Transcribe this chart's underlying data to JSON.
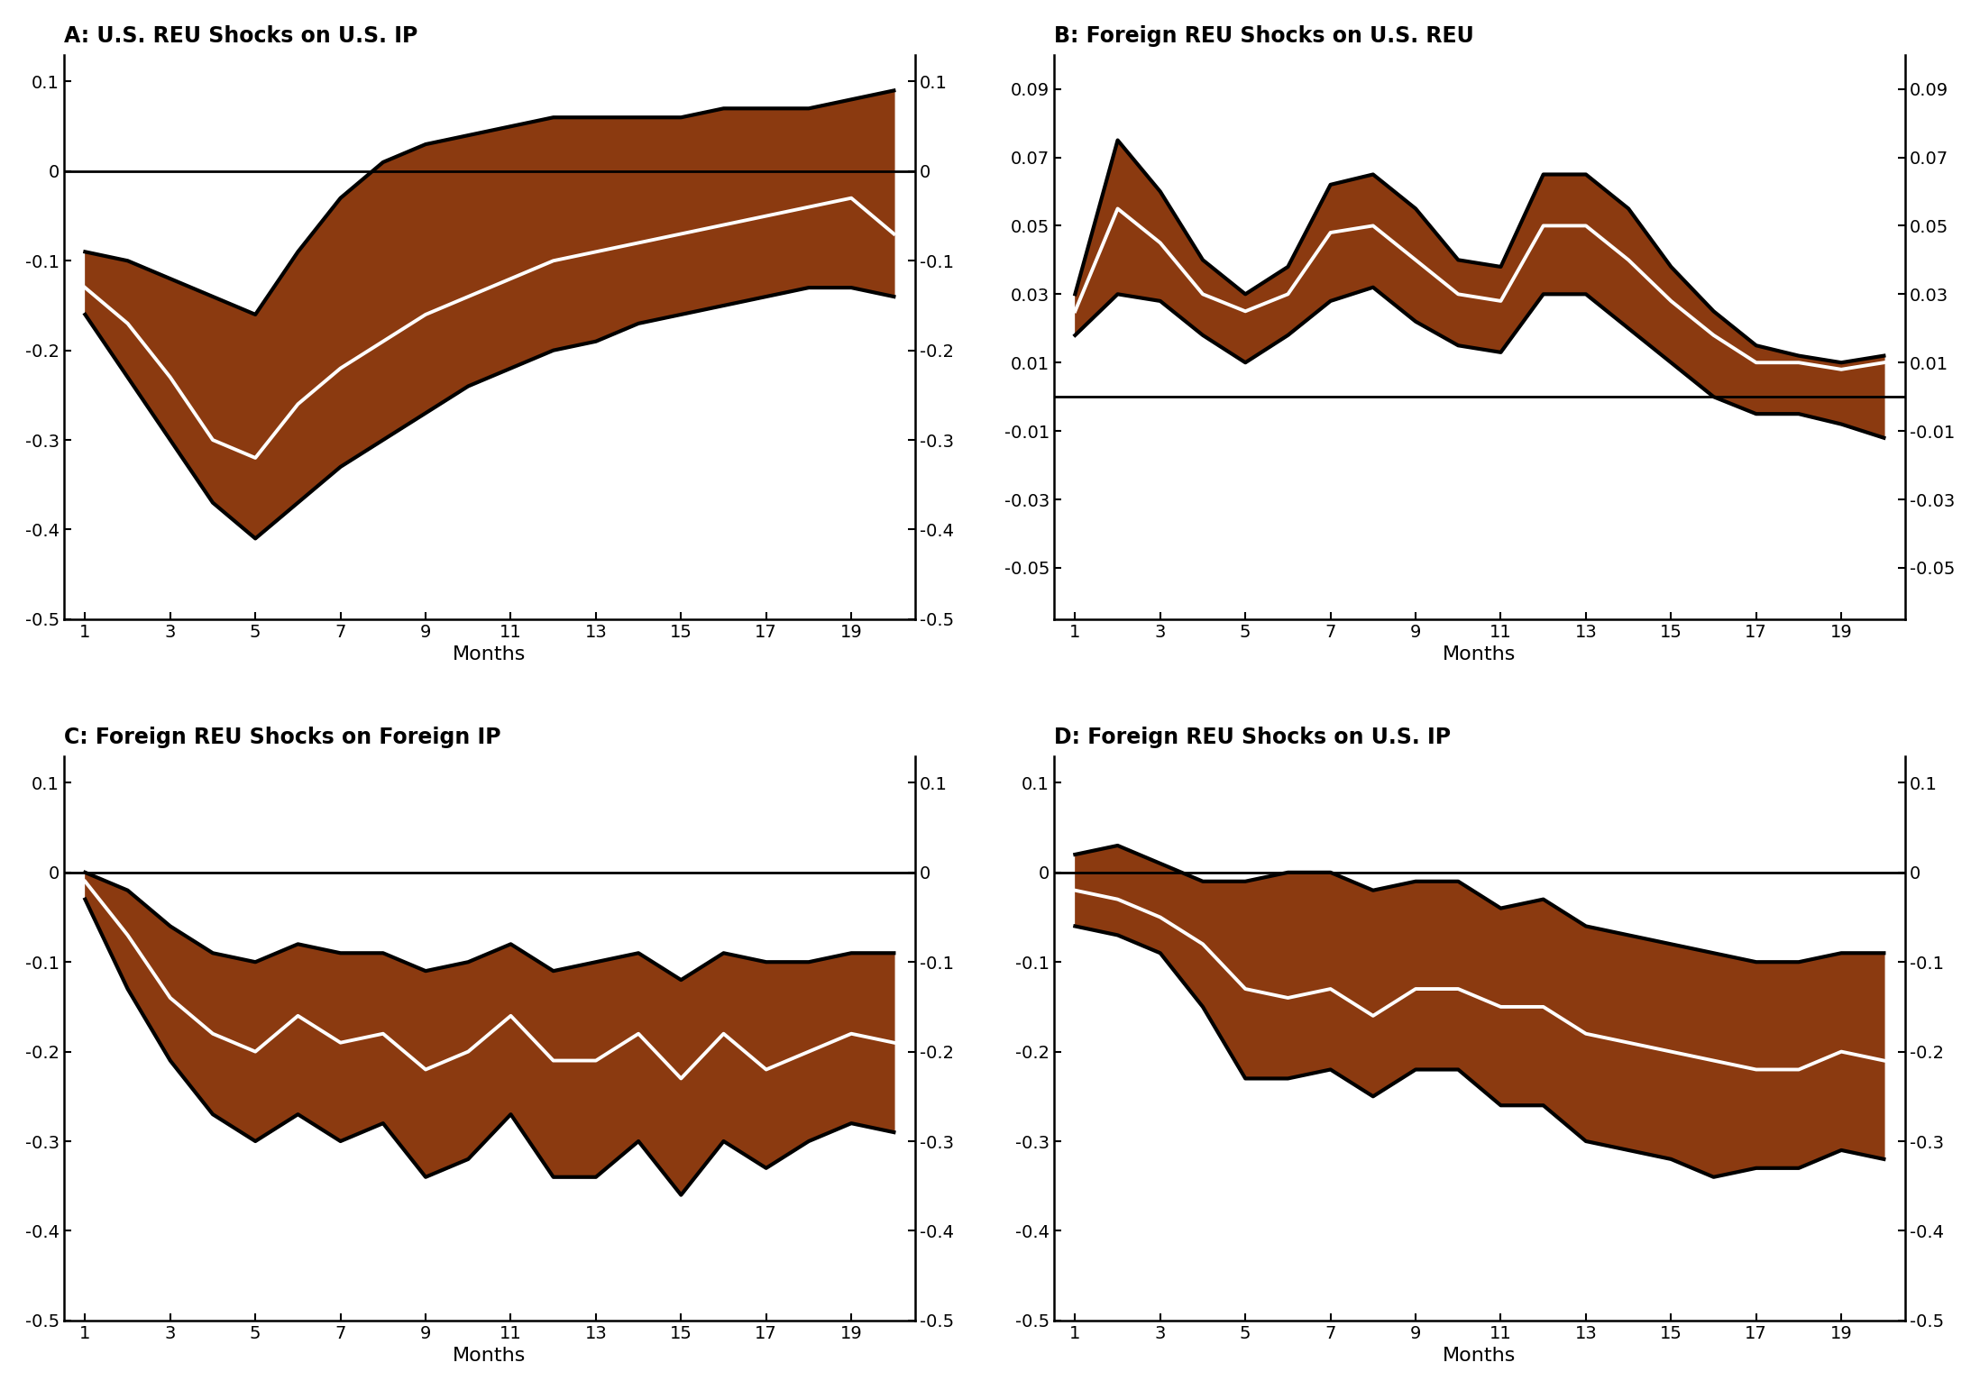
{
  "panels": [
    {
      "title": "A: U.S. REU Shocks on U.S. IP",
      "xlabel": "Months",
      "ylim": [
        -0.5,
        0.13
      ],
      "yticks": [
        0.1,
        0,
        -0.1,
        -0.2,
        -0.3,
        -0.4,
        -0.5
      ],
      "ytick_labels": [
        "0.1",
        "0",
        "-0.1",
        "-0.2",
        "-0.3",
        "-0.4",
        "-0.5"
      ],
      "xticks": [
        1,
        3,
        5,
        7,
        9,
        11,
        13,
        15,
        17,
        19
      ],
      "zero_line": 0,
      "median": [
        -0.13,
        -0.17,
        -0.23,
        -0.3,
        -0.32,
        -0.26,
        -0.22,
        -0.19,
        -0.16,
        -0.14,
        -0.12,
        -0.1,
        -0.09,
        -0.08,
        -0.07,
        -0.06,
        -0.05,
        -0.04,
        -0.03,
        -0.07
      ],
      "upper": [
        -0.09,
        -0.1,
        -0.12,
        -0.14,
        -0.16,
        -0.09,
        -0.03,
        0.01,
        0.03,
        0.04,
        0.05,
        0.06,
        0.06,
        0.06,
        0.06,
        0.07,
        0.07,
        0.07,
        0.08,
        0.09
      ],
      "lower": [
        -0.16,
        -0.23,
        -0.3,
        -0.37,
        -0.41,
        -0.37,
        -0.33,
        -0.3,
        -0.27,
        -0.24,
        -0.22,
        -0.2,
        -0.19,
        -0.17,
        -0.16,
        -0.15,
        -0.14,
        -0.13,
        -0.13,
        -0.14
      ]
    },
    {
      "title": "B: Foreign REU Shocks on U.S. REU",
      "xlabel": "Months",
      "ylim": [
        -0.065,
        0.1
      ],
      "yticks": [
        0.09,
        0.07,
        0.05,
        0.03,
        0.01,
        -0.01,
        -0.03,
        -0.05
      ],
      "ytick_labels": [
        "0.09",
        "0.07",
        "0.05",
        "0.03",
        "0.01",
        "-0.01",
        "-0.03",
        "-0.05"
      ],
      "xticks": [
        1,
        3,
        5,
        7,
        9,
        11,
        13,
        15,
        17,
        19
      ],
      "zero_line": 0,
      "median": [
        0.025,
        0.055,
        0.045,
        0.03,
        0.025,
        0.03,
        0.048,
        0.05,
        0.04,
        0.03,
        0.028,
        0.05,
        0.05,
        0.04,
        0.028,
        0.018,
        0.01,
        0.01,
        0.008,
        0.01
      ],
      "upper": [
        0.03,
        0.075,
        0.06,
        0.04,
        0.03,
        0.038,
        0.062,
        0.065,
        0.055,
        0.04,
        0.038,
        0.065,
        0.065,
        0.055,
        0.038,
        0.025,
        0.015,
        0.012,
        0.01,
        0.012
      ],
      "lower": [
        0.018,
        0.03,
        0.028,
        0.018,
        0.01,
        0.018,
        0.028,
        0.032,
        0.022,
        0.015,
        0.013,
        0.03,
        0.03,
        0.02,
        0.01,
        0.0,
        -0.005,
        -0.005,
        -0.008,
        -0.012
      ]
    },
    {
      "title": "C: Foreign REU Shocks on Foreign IP",
      "xlabel": "Months",
      "ylim": [
        -0.5,
        0.13
      ],
      "yticks": [
        0.1,
        0,
        -0.1,
        -0.2,
        -0.3,
        -0.4,
        -0.5
      ],
      "ytick_labels": [
        "0.1",
        "0",
        "-0.1",
        "-0.2",
        "-0.3",
        "-0.4",
        "-0.5"
      ],
      "xticks": [
        1,
        3,
        5,
        7,
        9,
        11,
        13,
        15,
        17,
        19
      ],
      "zero_line": 0,
      "median": [
        -0.01,
        -0.07,
        -0.14,
        -0.18,
        -0.2,
        -0.16,
        -0.19,
        -0.18,
        -0.22,
        -0.2,
        -0.16,
        -0.21,
        -0.21,
        -0.18,
        -0.23,
        -0.18,
        -0.22,
        -0.2,
        -0.18,
        -0.19
      ],
      "upper": [
        0.0,
        -0.02,
        -0.06,
        -0.09,
        -0.1,
        -0.08,
        -0.09,
        -0.09,
        -0.11,
        -0.1,
        -0.08,
        -0.11,
        -0.1,
        -0.09,
        -0.12,
        -0.09,
        -0.1,
        -0.1,
        -0.09,
        -0.09
      ],
      "lower": [
        -0.03,
        -0.13,
        -0.21,
        -0.27,
        -0.3,
        -0.27,
        -0.3,
        -0.28,
        -0.34,
        -0.32,
        -0.27,
        -0.34,
        -0.34,
        -0.3,
        -0.36,
        -0.3,
        -0.33,
        -0.3,
        -0.28,
        -0.29
      ]
    },
    {
      "title": "D: Foreign REU Shocks on U.S. IP",
      "xlabel": "Months",
      "ylim": [
        -0.5,
        0.13
      ],
      "yticks": [
        0.1,
        0,
        -0.1,
        -0.2,
        -0.3,
        -0.4,
        -0.5
      ],
      "ytick_labels": [
        "0.1",
        "0",
        "-0.1",
        "-0.2",
        "-0.3",
        "-0.4",
        "-0.5"
      ],
      "xticks": [
        1,
        3,
        5,
        7,
        9,
        11,
        13,
        15,
        17,
        19
      ],
      "zero_line": 0,
      "median": [
        -0.02,
        -0.03,
        -0.05,
        -0.08,
        -0.13,
        -0.14,
        -0.13,
        -0.16,
        -0.13,
        -0.13,
        -0.15,
        -0.15,
        -0.18,
        -0.19,
        -0.2,
        -0.21,
        -0.22,
        -0.22,
        -0.2,
        -0.21
      ],
      "upper": [
        0.02,
        0.03,
        0.01,
        -0.01,
        -0.01,
        -0.0,
        -0.0,
        -0.02,
        -0.01,
        -0.01,
        -0.04,
        -0.03,
        -0.06,
        -0.07,
        -0.08,
        -0.09,
        -0.1,
        -0.1,
        -0.09,
        -0.09
      ],
      "lower": [
        -0.06,
        -0.07,
        -0.09,
        -0.15,
        -0.23,
        -0.23,
        -0.22,
        -0.25,
        -0.22,
        -0.22,
        -0.26,
        -0.26,
        -0.3,
        -0.31,
        -0.32,
        -0.34,
        -0.33,
        -0.33,
        -0.31,
        -0.32
      ]
    }
  ],
  "fill_color": "#8B3A10",
  "line_color": "white",
  "band_color": "black",
  "zero_line_color": "black",
  "background_color": "white",
  "title_fontsize": 17,
  "tick_fontsize": 14,
  "label_fontsize": 16
}
